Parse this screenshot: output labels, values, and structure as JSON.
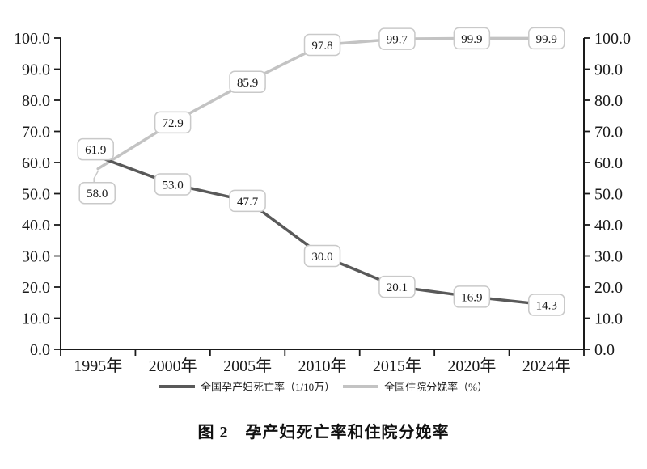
{
  "figure": {
    "caption": "图 2　孕产妇死亡率和住院分娩率"
  },
  "chart_data": {
    "type": "line",
    "title": "图 2　孕产妇死亡率和住院分娩率",
    "categories": [
      "1995年",
      "2000年",
      "2005年",
      "2010年",
      "2015年",
      "2020年",
      "2024年"
    ],
    "series": [
      {
        "name": "全国孕产妇死亡率（1/10万）",
        "values": [
          61.9,
          53.0,
          47.7,
          30.0,
          20.1,
          16.9,
          14.3
        ],
        "color": "#595959"
      },
      {
        "name": "全国住院分娩率（%）",
        "values": [
          58.0,
          72.9,
          85.9,
          97.8,
          99.7,
          99.9,
          99.9
        ],
        "color": "#c3c3c3"
      }
    ],
    "ylim": [
      0,
      100
    ],
    "ytick_step": 10,
    "ytick_labels": [
      "0.0",
      "10.0",
      "20.0",
      "30.0",
      "40.0",
      "50.0",
      "60.0",
      "70.0",
      "80.0",
      "90.0",
      "100.0"
    ],
    "dual_y_axis": true,
    "grid": false,
    "legend_position": "bottom",
    "data_labels": true,
    "colors": {
      "axis": "#1a1a1a",
      "text": "#1a1a1a",
      "label_box_border": "#c9c9c9",
      "label_box_fill": "#ffffff",
      "leader_line": "#c9c9c9",
      "background": "#ffffff"
    }
  }
}
